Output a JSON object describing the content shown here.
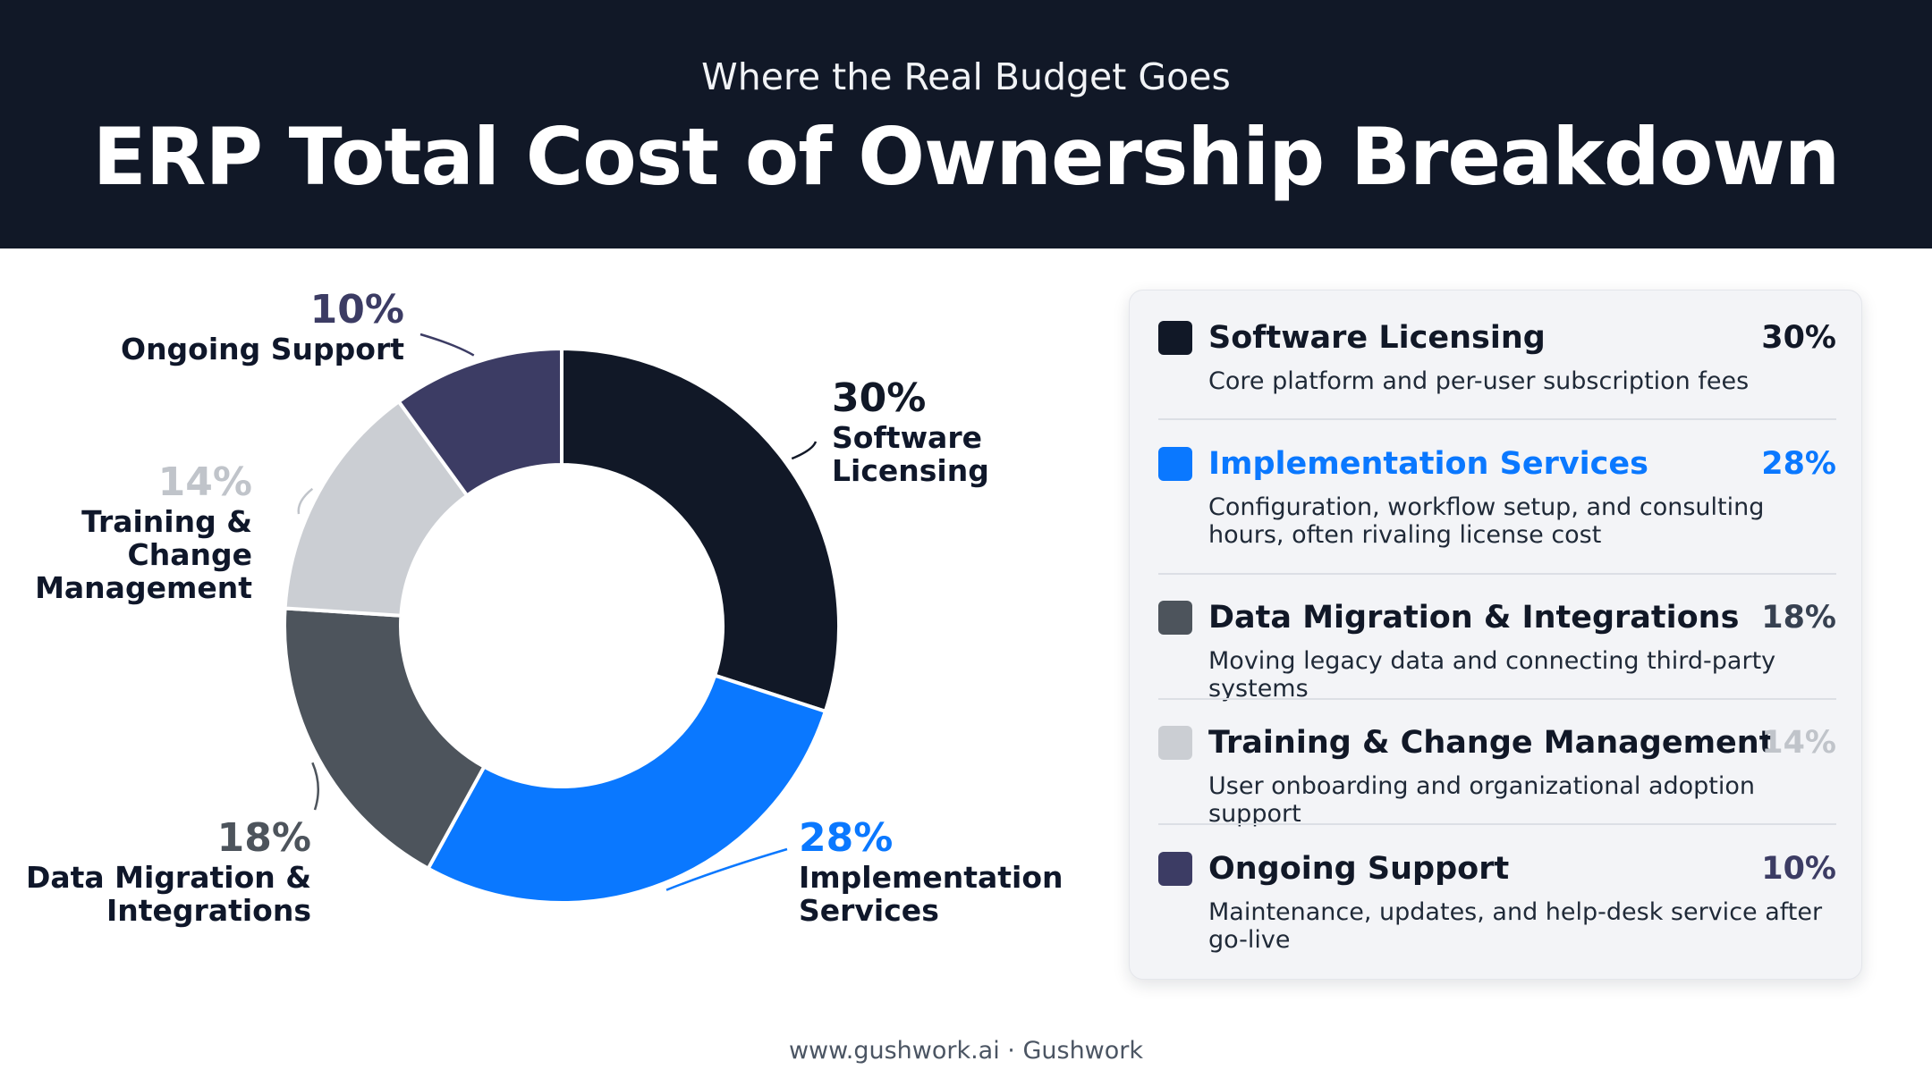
{
  "header": {
    "subtitle": "Where the Real Budget Goes",
    "title": "ERP Total Cost of Ownership Breakdown"
  },
  "chart_data": {
    "type": "pie",
    "variant": "donut",
    "title": "ERP Total Cost of Ownership Breakdown",
    "subtitle": "Where the Real Budget Goes",
    "series": [
      {
        "name": "Software Licensing",
        "value": 30,
        "pct_label": "30%",
        "color": "#111827",
        "callout": [
          "Software",
          "Licensing"
        ],
        "description": "Core platform and per-user subscription fees"
      },
      {
        "name": "Implementation Services",
        "value": 28,
        "pct_label": "28%",
        "color": "#0a78ff",
        "callout": [
          "Implementation",
          "Services"
        ],
        "description": "Configuration, workflow setup, and consulting hours, often rivaling license cost"
      },
      {
        "name": "Data Migration & Integrations",
        "value": 18,
        "pct_label": "18%",
        "color": "#4d545c",
        "callout": [
          "Data Migration &",
          "Integrations"
        ],
        "description": "Moving legacy data and connecting third-party systems"
      },
      {
        "name": "Training & Change Management",
        "value": 14,
        "pct_label": "14%",
        "color": "#cbced3",
        "callout": [
          "Training &",
          "Change",
          "Management"
        ],
        "description": "User onboarding and organizational adoption support"
      },
      {
        "name": "Ongoing Support",
        "value": 10,
        "pct_label": "10%",
        "color": "#3c3c64",
        "callout": [
          "Ongoing Support"
        ],
        "description": "Maintenance, updates, and help-desk service after go-live"
      }
    ],
    "legend": "right-panel"
  },
  "colors": {
    "header_bg": "#111827",
    "implementation_accent": "#0a78ff",
    "training_text": "#c0c4ca"
  },
  "footer": "www.gushwork.ai · Gushwork"
}
